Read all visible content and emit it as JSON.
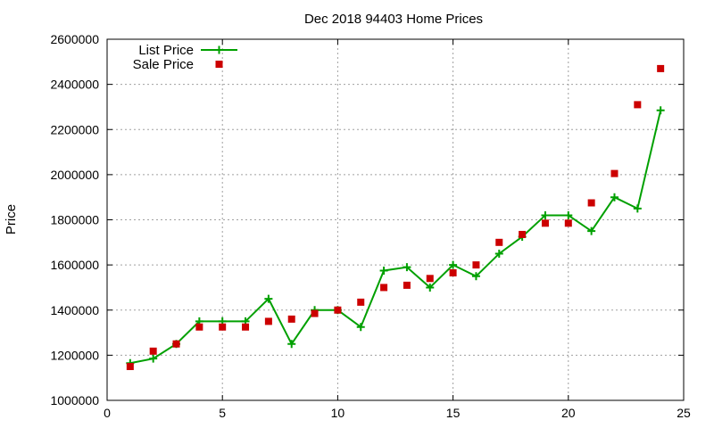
{
  "chart_data": {
    "type": "line",
    "title": "Dec 2018 94403 Home Prices",
    "xlabel": "",
    "ylabel": "Price",
    "xlim": [
      0,
      25
    ],
    "ylim": [
      1000000,
      2600000
    ],
    "x_ticks": [
      0,
      5,
      10,
      15,
      20,
      25
    ],
    "y_ticks": [
      1000000,
      1200000,
      1400000,
      1600000,
      1800000,
      2000000,
      2200000,
      2400000,
      2600000
    ],
    "grid": true,
    "legend_position": "top-left",
    "x": [
      1,
      2,
      3,
      4,
      5,
      6,
      7,
      8,
      9,
      10,
      11,
      12,
      13,
      14,
      15,
      16,
      17,
      18,
      19,
      20,
      21,
      22,
      23,
      24
    ],
    "series": [
      {
        "name": "List Price",
        "style": "line-plus",
        "color": "#00a000",
        "values": [
          1165000,
          1185000,
          1250000,
          1350000,
          1350000,
          1350000,
          1450000,
          1250000,
          1400000,
          1400000,
          1325000,
          1575000,
          1590000,
          1500000,
          1600000,
          1550000,
          1650000,
          1725000,
          1820000,
          1820000,
          1750000,
          1900000,
          1850000,
          2285000
        ]
      },
      {
        "name": "Sale Price",
        "style": "square",
        "color": "#cc0000",
        "values": [
          1150000,
          1218000,
          1250000,
          1325000,
          1325000,
          1325000,
          1350000,
          1360000,
          1385000,
          1400000,
          1435000,
          1500000,
          1510000,
          1540000,
          1565000,
          1600000,
          1700000,
          1735000,
          1785000,
          1785000,
          1875000,
          2005000,
          2310000,
          2470000
        ]
      }
    ]
  }
}
